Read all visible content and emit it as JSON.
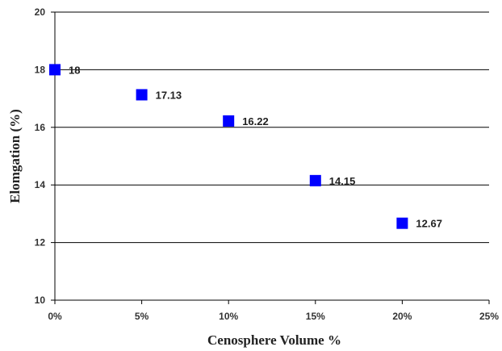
{
  "chart_data": {
    "type": "scatter",
    "title": "",
    "xlabel": "Cenosphere Volume  %",
    "ylabel": "Elomgation (%)",
    "xlim": [
      0,
      25
    ],
    "ylim": [
      10,
      20
    ],
    "x_ticks": [
      0,
      5,
      10,
      15,
      20,
      25
    ],
    "x_tick_labels": [
      "0%",
      "5%",
      "10%",
      "15%",
      "20%",
      "25%"
    ],
    "y_ticks": [
      10,
      12,
      14,
      16,
      18,
      20
    ],
    "y_tick_labels": [
      "10",
      "12",
      "14",
      "16",
      "18",
      "20"
    ],
    "grid": "horizontal",
    "legend": "none",
    "series": [
      {
        "x": [
          0,
          5,
          10,
          15,
          20
        ],
        "values": [
          18,
          17.13,
          16.22,
          14.15,
          12.67
        ],
        "labels": [
          "18",
          "17.13",
          "16.22",
          "14.15",
          "12.67"
        ],
        "color": "#0000ff",
        "marker": "square"
      }
    ]
  }
}
